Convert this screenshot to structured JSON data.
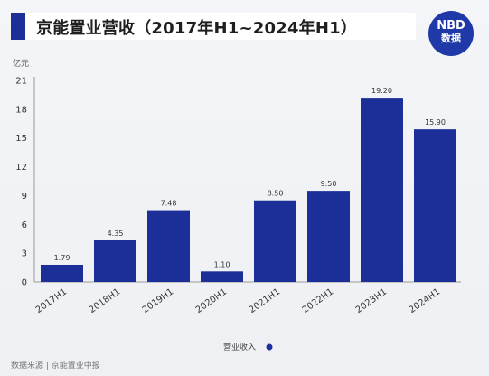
{
  "header": {
    "title": "京能置业营收（2017年H1~2024年H1）",
    "logo_line1": "NBD",
    "logo_line2": "数据"
  },
  "footer": {
    "source": "数据来源 | 京能置业中报"
  },
  "colors": {
    "bar": "#1c2f99",
    "accent": "#1c2f99",
    "logo": "#1f3aa8"
  },
  "chart_data": {
    "type": "bar",
    "ylabel": "亿元",
    "ylim": [
      0,
      21
    ],
    "yticks": [
      0,
      3,
      6,
      9,
      12,
      15,
      18,
      21
    ],
    "categories": [
      "2017H1",
      "2018H1",
      "2019H1",
      "2020H1",
      "2021H1",
      "2022H1",
      "2023H1",
      "2024H1"
    ],
    "series": [
      {
        "name": "营业收入",
        "values": [
          1.79,
          4.35,
          7.48,
          1.1,
          8.5,
          9.5,
          19.2,
          15.9
        ],
        "labels": [
          "1.79",
          "4.35",
          "7.48",
          "1.10",
          "8.50",
          "9.50",
          "19.20",
          "15.90"
        ]
      }
    ],
    "legend": "bottom-center",
    "grid": false
  }
}
